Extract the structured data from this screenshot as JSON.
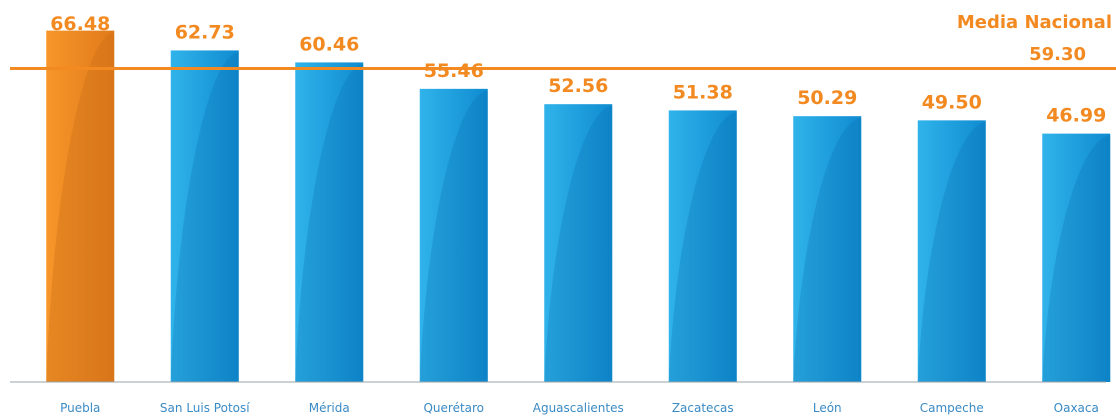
{
  "chart_data": {
    "type": "bar",
    "categories": [
      "Puebla",
      "San Luis Potosí",
      "Mérida",
      "Querétaro",
      "Aguascalientes",
      "Zacatecas",
      "León",
      "Campeche",
      "Oaxaca"
    ],
    "values": [
      66.48,
      62.73,
      60.46,
      55.46,
      52.56,
      51.38,
      50.29,
      49.5,
      46.99
    ],
    "value_labels": [
      "66.48",
      "62.73",
      "60.46",
      "55.46",
      "52.56",
      "51.38",
      "50.29",
      "49.50",
      "46.99"
    ],
    "highlight_index": 0,
    "reference_line": {
      "label": "Media Nacional",
      "value": 59.3,
      "value_label": "59.30"
    },
    "ylim": [
      0,
      70
    ],
    "colors": {
      "bar": "#1a9ad9",
      "bar_light": "#33b5ec",
      "highlight": "#f28a21",
      "highlight_dark": "#c96d18",
      "reference_line": "#f28a21",
      "label_text": "#f28a21",
      "category_text": "#3a8ac4",
      "axis": "#9aa3a9"
    }
  }
}
